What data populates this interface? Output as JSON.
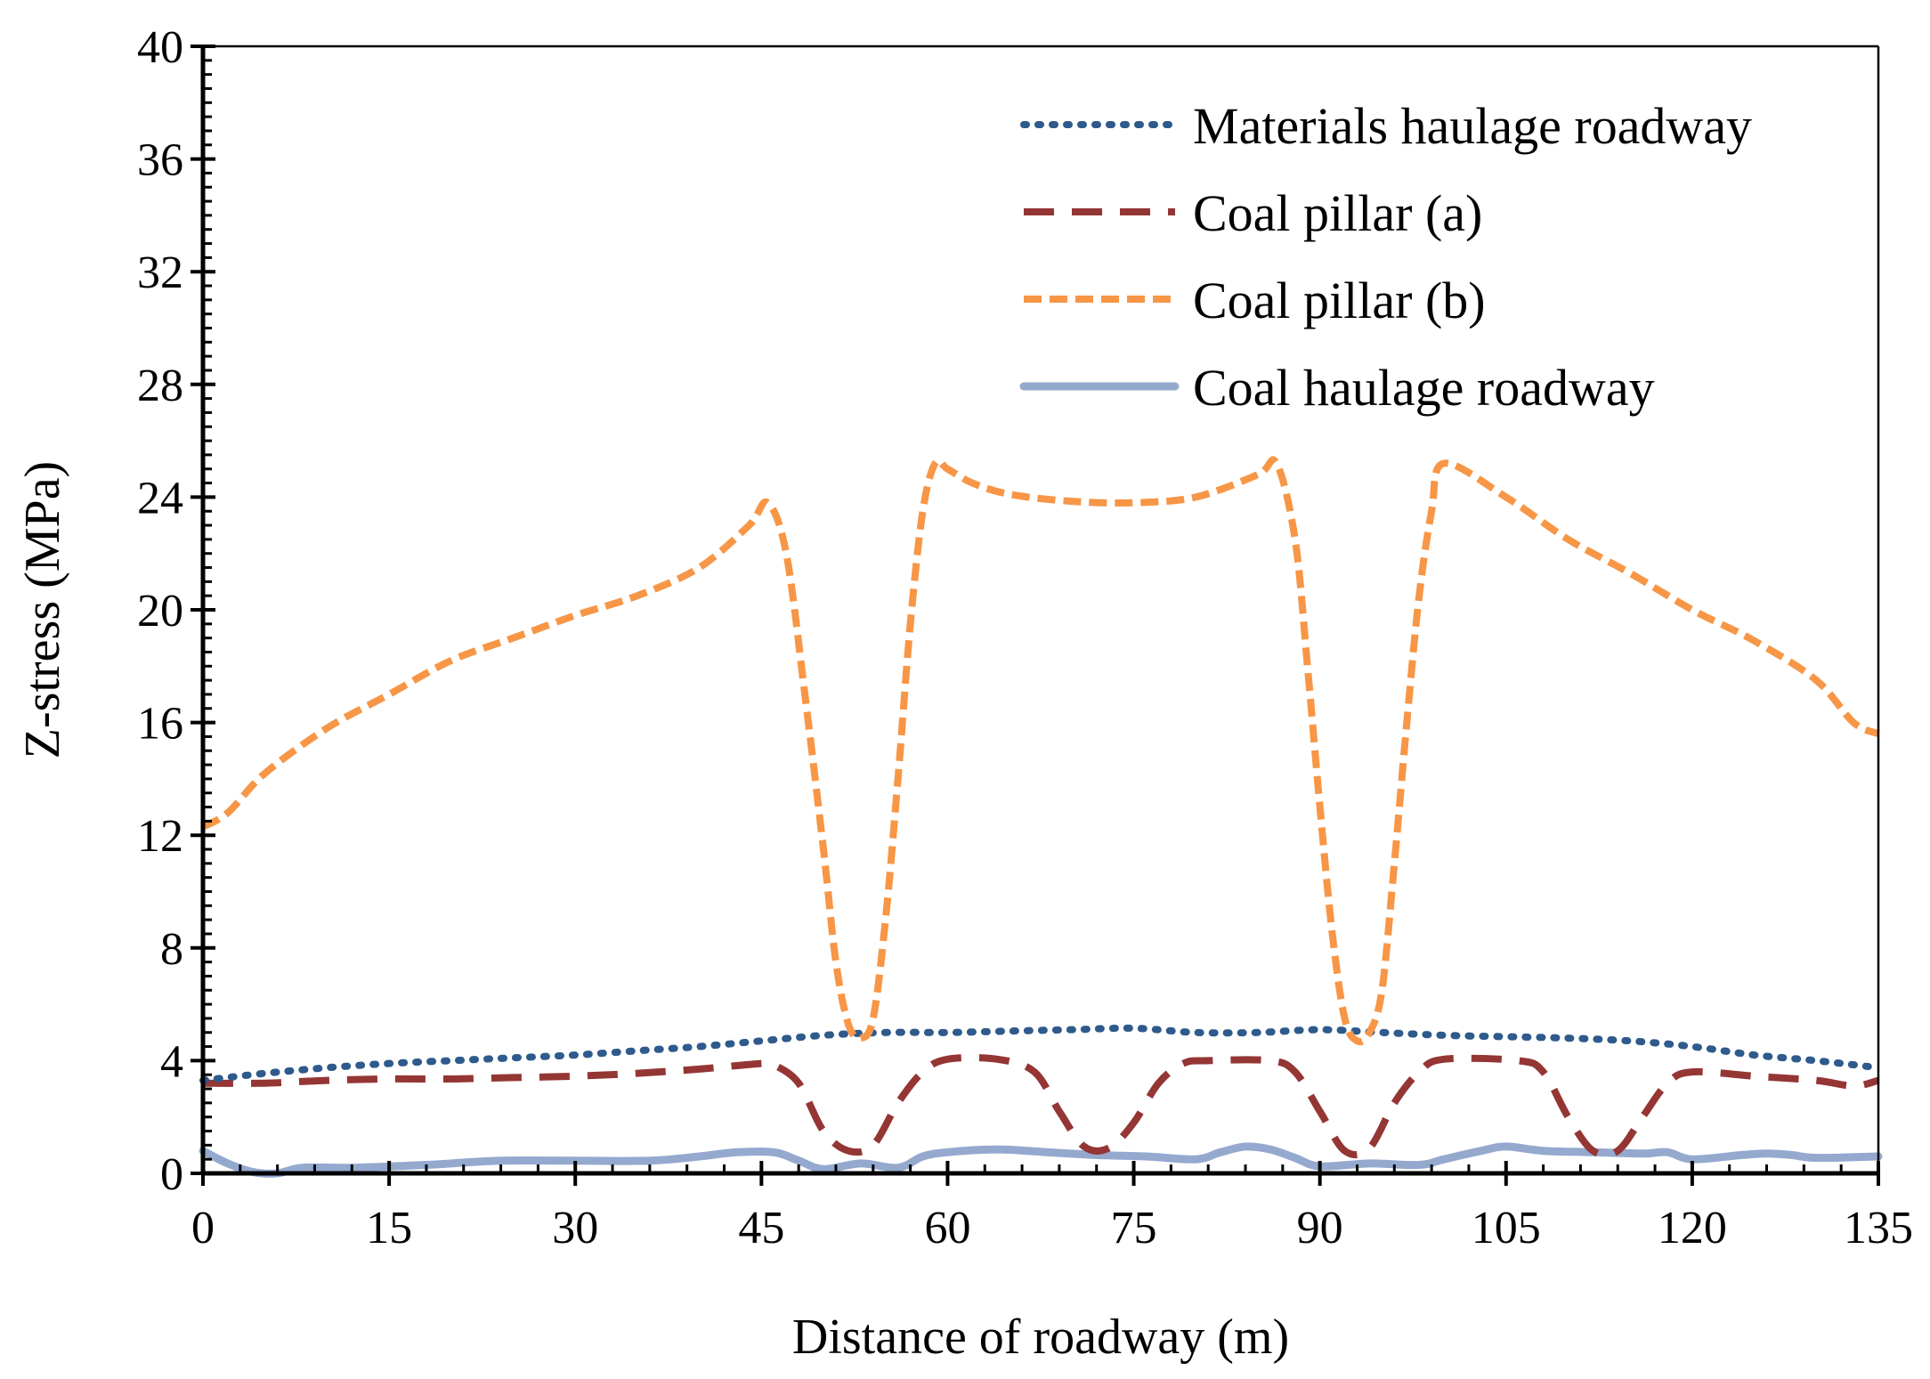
{
  "chart_data": {
    "type": "line",
    "title": "",
    "xlabel": "Distance of roadway (m)",
    "ylabel": "Z-stress (MPa)",
    "xlim": [
      0,
      135
    ],
    "ylim": [
      0,
      40
    ],
    "xticks": [
      0,
      15,
      30,
      45,
      60,
      75,
      90,
      105,
      120,
      135
    ],
    "yticks": [
      0,
      4,
      8,
      12,
      16,
      20,
      24,
      28,
      32,
      36,
      40
    ],
    "grid": false,
    "legend_position": "top-right",
    "series": [
      {
        "name": "Materials haulage roadway",
        "color": "#2E5A8C",
        "style": "dotted",
        "x": [
          0,
          5,
          10,
          15,
          20,
          25,
          30,
          35,
          40,
          45,
          50,
          55,
          60,
          65,
          70,
          75,
          80,
          85,
          90,
          95,
          100,
          105,
          110,
          115,
          120,
          125,
          130,
          135
        ],
        "y": [
          3.3,
          3.55,
          3.75,
          3.9,
          4.0,
          4.1,
          4.2,
          4.35,
          4.5,
          4.7,
          4.9,
          5.0,
          5.0,
          5.05,
          5.1,
          5.15,
          5.0,
          5.0,
          5.1,
          5.0,
          4.9,
          4.85,
          4.8,
          4.7,
          4.5,
          4.2,
          4.0,
          3.75
        ]
      },
      {
        "name": "Coal pillar (a)",
        "color": "#943634",
        "style": "long-dash",
        "x": [
          0,
          5,
          10,
          15,
          20,
          25,
          30,
          35,
          40,
          45,
          46,
          48,
          50,
          52,
          54,
          56,
          58,
          60,
          64,
          67,
          69,
          71,
          73,
          75,
          77,
          79,
          81,
          86,
          88,
          90,
          92,
          94,
          96,
          98,
          100,
          106,
          108,
          110,
          112,
          114,
          116,
          118,
          120,
          125,
          130,
          133,
          135
        ],
        "y": [
          3.2,
          3.2,
          3.3,
          3.35,
          3.35,
          3.4,
          3.45,
          3.55,
          3.7,
          3.9,
          3.85,
          3.2,
          1.5,
          0.8,
          1.0,
          2.5,
          3.6,
          4.05,
          4.05,
          3.6,
          2.2,
          0.95,
          0.9,
          1.8,
          3.2,
          3.9,
          4.0,
          4.0,
          3.6,
          2.2,
          0.8,
          0.9,
          2.5,
          3.6,
          4.05,
          4.0,
          3.6,
          2.0,
          0.8,
          0.8,
          2.0,
          3.2,
          3.6,
          3.45,
          3.3,
          3.1,
          3.3
        ]
      },
      {
        "name": "Coal pillar (b)",
        "color": "#F79646",
        "style": "dashed",
        "x": [
          0,
          2,
          5,
          10,
          15,
          20,
          25,
          30,
          35,
          40,
          44,
          45.5,
          47,
          48.5,
          50,
          51,
          52,
          53,
          54,
          55,
          56,
          57,
          58,
          59,
          60,
          62,
          65,
          70,
          75,
          80,
          85,
          86.5,
          88,
          89,
          90,
          91,
          92,
          93,
          94,
          95,
          96,
          97,
          98,
          99,
          100,
          105,
          110,
          115,
          120,
          125,
          130,
          133,
          135
        ],
        "y": [
          12.3,
          12.8,
          14.2,
          15.8,
          17.0,
          18.2,
          19.0,
          19.8,
          20.5,
          21.5,
          23.0,
          23.8,
          22.0,
          17.0,
          11.5,
          7.5,
          5.3,
          4.8,
          5.5,
          9.0,
          14.0,
          19.5,
          23.5,
          25.2,
          25.0,
          24.5,
          24.1,
          23.85,
          23.8,
          24.0,
          24.8,
          25.2,
          22.5,
          18.0,
          13.0,
          8.5,
          5.5,
          4.7,
          5.0,
          6.5,
          11.0,
          16.0,
          20.5,
          23.5,
          25.2,
          24.0,
          22.5,
          21.3,
          20.0,
          18.9,
          17.5,
          16.0,
          15.6
        ]
      },
      {
        "name": "Coal haulage roadway",
        "color": "#95A9CF",
        "style": "solid",
        "x": [
          0,
          2,
          4,
          6,
          8,
          12,
          18,
          24,
          30,
          36,
          40,
          43,
          46,
          48,
          50,
          53,
          56,
          58,
          60,
          64,
          68,
          72,
          76,
          80,
          82,
          84,
          86,
          88,
          90,
          94,
          98,
          100,
          103,
          105,
          108,
          112,
          116,
          118,
          120,
          124,
          126,
          128,
          130,
          135
        ],
        "y": [
          0.8,
          0.35,
          0.05,
          0.0,
          0.2,
          0.2,
          0.3,
          0.45,
          0.45,
          0.45,
          0.6,
          0.75,
          0.75,
          0.45,
          0.15,
          0.35,
          0.2,
          0.6,
          0.75,
          0.85,
          0.75,
          0.65,
          0.6,
          0.5,
          0.75,
          0.95,
          0.85,
          0.55,
          0.25,
          0.35,
          0.3,
          0.5,
          0.8,
          0.95,
          0.8,
          0.75,
          0.7,
          0.75,
          0.5,
          0.65,
          0.7,
          0.65,
          0.55,
          0.6
        ]
      }
    ]
  }
}
